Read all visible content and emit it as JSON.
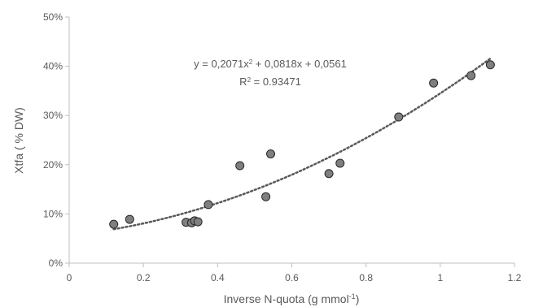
{
  "chart_data": {
    "type": "scatter",
    "title": "",
    "xlabel": {
      "main": "Inverse N-quota (g mmol",
      "sup": "-1",
      "close": ")"
    },
    "ylabel": "Xtfa ( % DW)",
    "xlim": [
      0,
      1.2
    ],
    "ylim": [
      0,
      0.5
    ],
    "x_ticks": [
      0,
      0.2,
      0.4,
      0.6,
      0.8,
      1,
      1.2
    ],
    "x_tick_labels": [
      "0",
      "0.2",
      "0.4",
      "0.6",
      "0.8",
      "1",
      "1.2"
    ],
    "y_ticks": [
      0,
      0.1,
      0.2,
      0.3,
      0.4,
      0.5
    ],
    "y_tick_labels": [
      "0%",
      "10%",
      "20%",
      "30%",
      "40%",
      "50%"
    ],
    "grid": false,
    "legend": "none",
    "marker_color": "#7f7f7f",
    "trend_color": "#595959",
    "points": [
      {
        "x": 0.12,
        "y": 0.079
      },
      {
        "x": 0.163,
        "y": 0.089
      },
      {
        "x": 0.315,
        "y": 0.083
      },
      {
        "x": 0.33,
        "y": 0.082
      },
      {
        "x": 0.338,
        "y": 0.086
      },
      {
        "x": 0.347,
        "y": 0.084
      },
      {
        "x": 0.375,
        "y": 0.119
      },
      {
        "x": 0.46,
        "y": 0.198
      },
      {
        "x": 0.53,
        "y": 0.135
      },
      {
        "x": 0.543,
        "y": 0.222
      },
      {
        "x": 0.7,
        "y": 0.182
      },
      {
        "x": 0.73,
        "y": 0.203
      },
      {
        "x": 0.888,
        "y": 0.297
      },
      {
        "x": 0.982,
        "y": 0.366
      },
      {
        "x": 1.083,
        "y": 0.381
      },
      {
        "x": 1.135,
        "y": 0.403
      }
    ],
    "trendline": {
      "type": "polynomial",
      "coefficients": [
        0.0561,
        0.0818,
        0.2071
      ],
      "x_range": [
        0.12,
        1.135
      ],
      "equation": {
        "lead": "y = 0,2071x",
        "sup": "2",
        "rest": " + 0,0818x + 0,0561"
      },
      "r2": {
        "lead": "R",
        "sup": "2",
        "rest": " = 0.93471"
      }
    }
  }
}
